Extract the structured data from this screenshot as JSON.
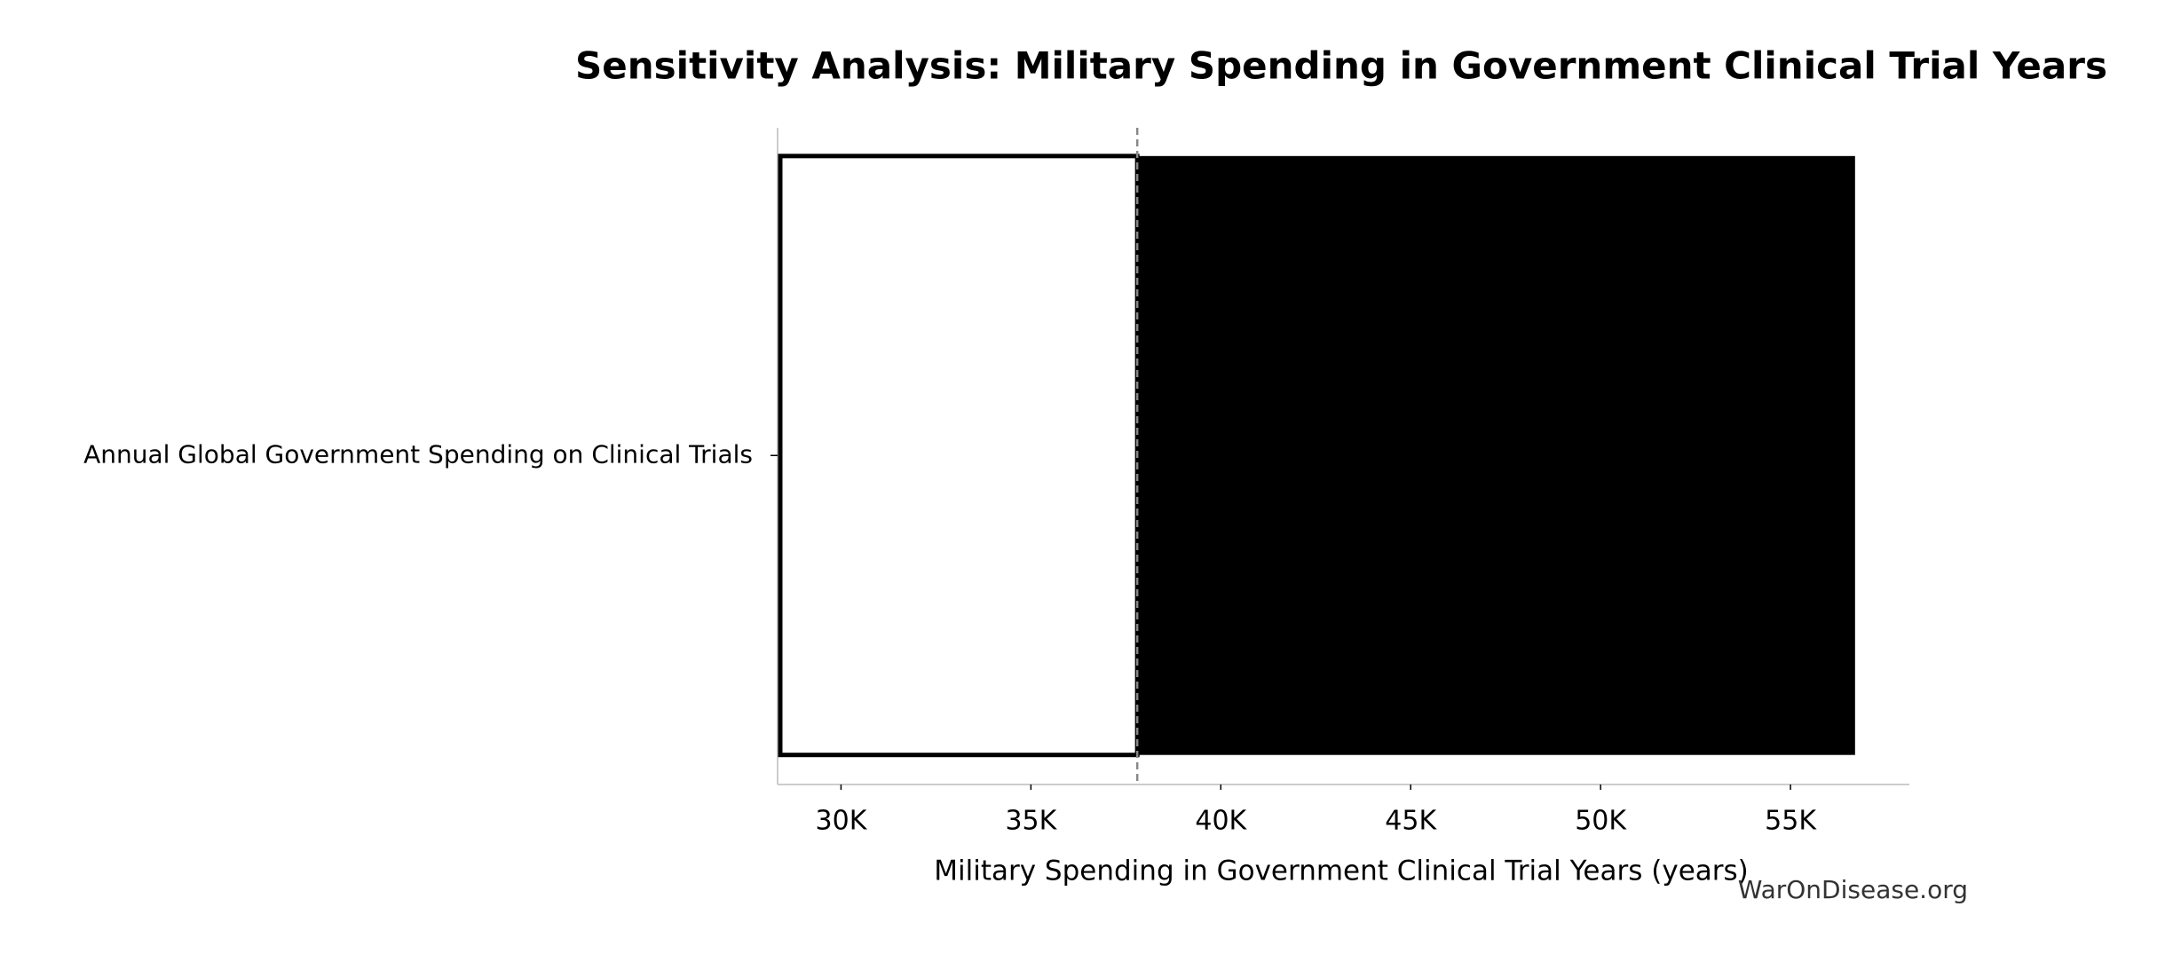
{
  "chart_data": {
    "type": "tornado",
    "title": "Sensitivity Analysis: Military Spending in Government Clinical Trial Years",
    "x_label": "Military Spending in Government Clinical Trial Years (years)",
    "watermark": "WarOnDisease.org",
    "categories": [
      "Annual Global Government Spending on Clinical Trials"
    ],
    "low": [
      28400
    ],
    "high": [
      56700
    ],
    "baseline": 37800,
    "low_color": "#ffffff",
    "high_color": "#000000",
    "xlim": [
      28330,
      58130
    ],
    "xticks": [
      {
        "value": 30000,
        "label": "30K"
      },
      {
        "value": 35000,
        "label": "35K"
      },
      {
        "value": 40000,
        "label": "40K"
      },
      {
        "value": 45000,
        "label": "45K"
      },
      {
        "value": 50000,
        "label": "50K"
      },
      {
        "value": 55000,
        "label": "55K"
      }
    ]
  }
}
